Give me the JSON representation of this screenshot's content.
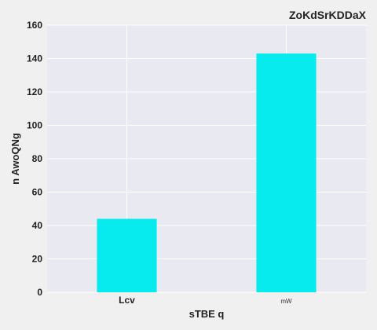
{
  "chart_data": {
    "type": "bar",
    "title": "ZoKdSrKDDaX",
    "xlabel": "sTBE  q",
    "ylabel": "n AwoQNg",
    "categories": [
      "Lcv",
      "mW"
    ],
    "values": [
      44,
      143
    ],
    "ylim": [
      0,
      160
    ],
    "yticks": [
      0,
      20,
      40,
      60,
      80,
      100,
      120,
      140,
      160
    ],
    "grid": true,
    "colors": {
      "bar": "#07ebef",
      "plot_bg": "#e9e9f1",
      "grid": "#ffffff"
    }
  }
}
